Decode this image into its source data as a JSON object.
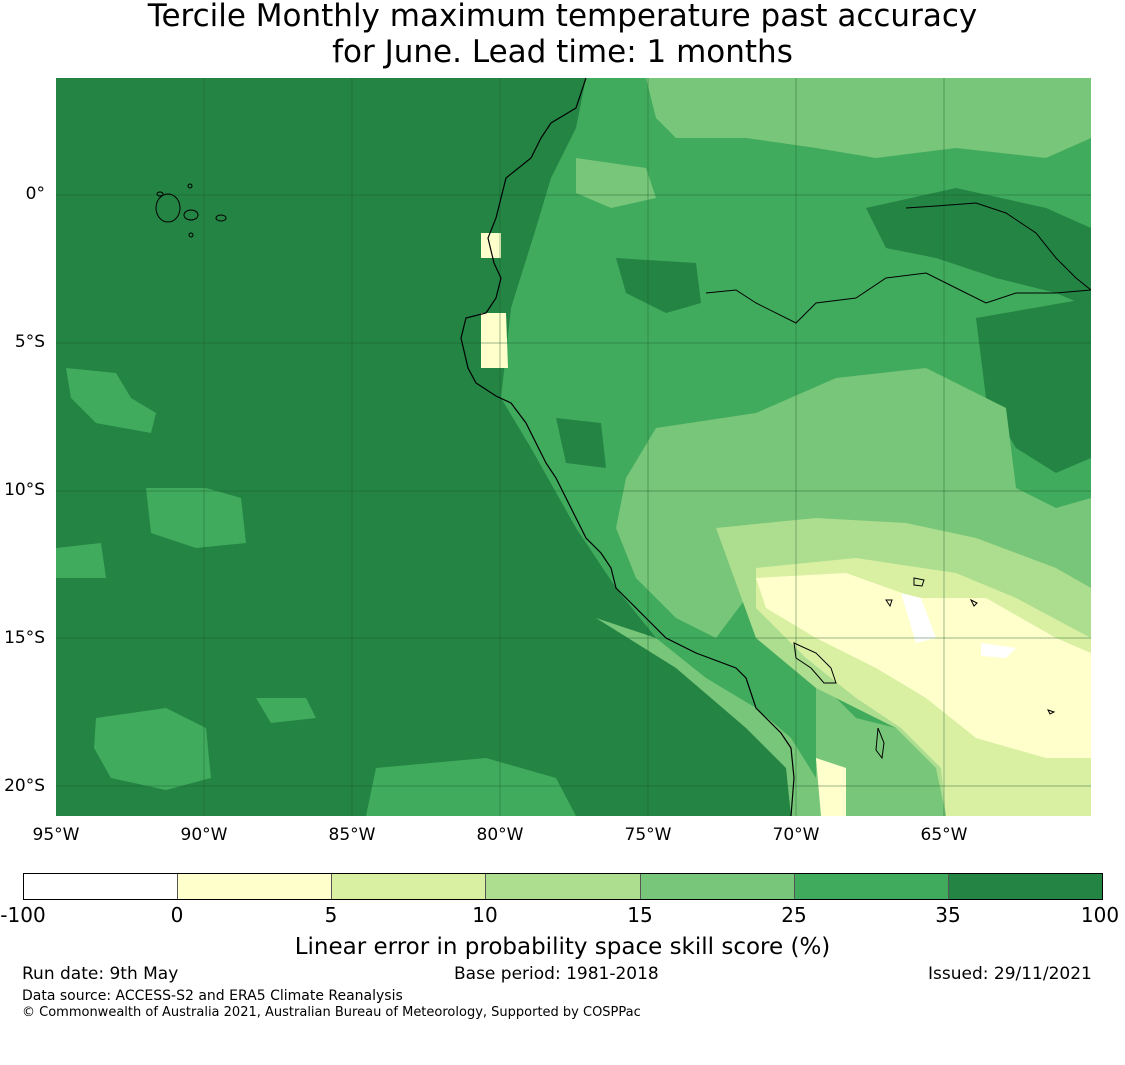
{
  "title": {
    "line1": "Tercile Monthly maximum temperature past accuracy",
    "line2": "for June. Lead time: 1 months"
  },
  "map": {
    "region": "Pacific coast of South America (Ecuador, Peru, northern Chile)",
    "lat_range": [
      -21,
      4
    ],
    "lon_range": [
      -95,
      -60
    ],
    "y_tick_labels": [
      "0°",
      "5°S",
      "10°S",
      "15°S",
      "20°S"
    ],
    "x_tick_labels": [
      "95°W",
      "90°W",
      "85°W",
      "80°W",
      "75°W",
      "70°W",
      "65°W"
    ],
    "gridlines": true
  },
  "colorbar": {
    "title": "Linear error in probability space skill score (%)",
    "boundaries": [
      "-100",
      "0",
      "5",
      "10",
      "15",
      "25",
      "35",
      "100"
    ],
    "colors": [
      "#ffffff",
      "#ffffcc",
      "#d9f0a3",
      "#addd8e",
      "#78c679",
      "#41ab5d",
      "#238443"
    ]
  },
  "footer": {
    "run_date": "Run date: 9th May",
    "base_period": "Base period: 1981-2018",
    "issued": "Issued: 29/11/2021",
    "data_source": "Data source: ACCESS-S2 and ERA5 Climate Reanalysis",
    "copyright": "© Commonwealth of Australia 2021, Australian Bureau of Meteorology, Supported by COSPPac"
  }
}
